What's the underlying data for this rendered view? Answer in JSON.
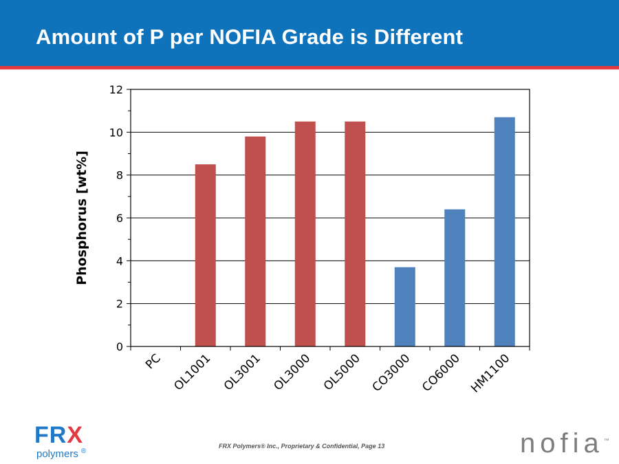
{
  "header": {
    "title": "Amount of P per NOFIA Grade is Different"
  },
  "chart_data": {
    "type": "bar",
    "title": "",
    "xlabel": "",
    "ylabel": "Phosphorus [wt%]",
    "ylim": [
      0,
      12
    ],
    "yticks": [
      0,
      2,
      4,
      6,
      8,
      10,
      12
    ],
    "y_tick_labels": [
      "0",
      "2",
      "4",
      "6",
      "8",
      "10",
      "12"
    ],
    "grid": true,
    "legend": "none",
    "categories": [
      "PC",
      "OL1001",
      "OL3001",
      "OL3000",
      "OL5000",
      "CO3000",
      "CO6000",
      "HM1100"
    ],
    "values": [
      0,
      8.5,
      9.8,
      10.5,
      10.5,
      3.7,
      6.4,
      10.7
    ],
    "bar_colors": [
      "#c0504d",
      "#c0504d",
      "#c0504d",
      "#c0504d",
      "#c0504d",
      "#4f81bd",
      "#4f81bd",
      "#4f81bd"
    ]
  },
  "footer": {
    "text": "FRX Polymers® Inc., Proprietary & Confidential,  Page 13"
  },
  "logos": {
    "frx_mark": "FR",
    "frx_mark_x": "X",
    "frx_sub": "polymers",
    "frx_reg": "®",
    "nofia_mark": "nofia",
    "nofia_tm": "™"
  },
  "colors": {
    "header": "#0f73bc",
    "stripe": "#e23a3f",
    "frx_blue": "#1f78c8",
    "frx_red": "#e23a3f",
    "nofia_gray": "#7d7d7d"
  }
}
